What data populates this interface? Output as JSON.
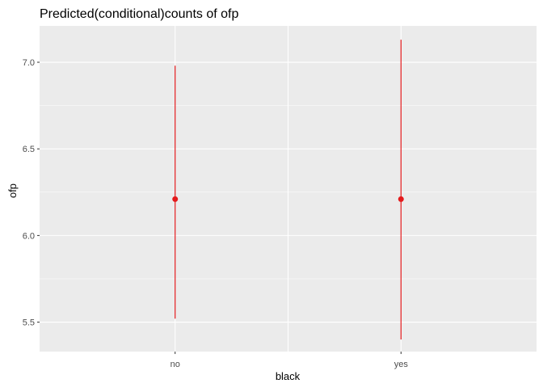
{
  "chart_data": {
    "type": "scatter",
    "title": "Predicted(conditional)counts of ofp",
    "xlabel": "black",
    "ylabel": "ofp",
    "categories": [
      "no",
      "yes"
    ],
    "series": [
      {
        "points": [
          {
            "x": "no",
            "y": 6.21,
            "ymin": 5.52,
            "ymax": 6.98
          },
          {
            "x": "yes",
            "y": 6.21,
            "ymin": 5.4,
            "ymax": 7.13
          }
        ]
      }
    ],
    "ylim": [
      5.33,
      7.21
    ],
    "yticks": [
      5.5,
      6.0,
      6.5,
      7.0
    ],
    "ytick_labels": [
      "5.5",
      "6.0",
      "6.5",
      "7.0"
    ],
    "grid": true,
    "legend": "none",
    "colors": {
      "panel_background": "#ebebeb",
      "grid_major": "#ffffff",
      "point": "#e41a1c",
      "tick_text": "#4d4d4d",
      "tick_mark": "#333333"
    }
  }
}
